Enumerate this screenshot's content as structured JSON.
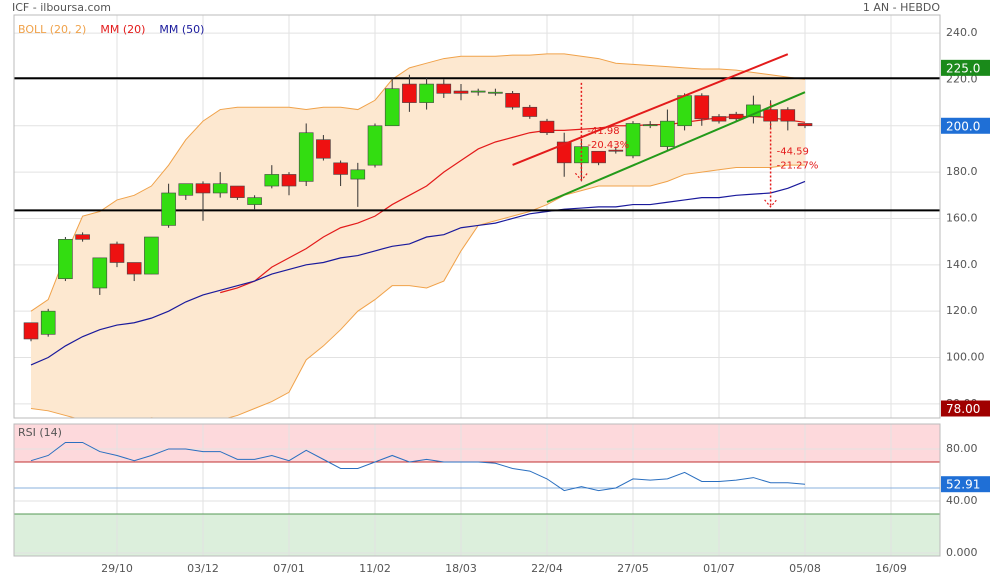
{
  "chart_data": {
    "type": "candlestick",
    "title": "ICF - ilboursa.com",
    "subtitle": "1 AN - HEBDO",
    "categories": [
      null,
      null,
      null,
      null,
      null,
      "29/10",
      null,
      null,
      null,
      null,
      "03/12",
      null,
      null,
      null,
      null,
      "07/01",
      null,
      null,
      null,
      null,
      "11/02",
      null,
      null,
      null,
      null,
      "18/03",
      null,
      null,
      null,
      null,
      "22/04",
      null,
      null,
      null,
      null,
      "27/05",
      null,
      null,
      null,
      null,
      "01/07",
      null,
      null,
      null,
      null,
      "05/08",
      null,
      null,
      null,
      null,
      "16/09"
    ],
    "candles": {
      "up_color": "#33dd11",
      "down_color": "#ee1111",
      "open": [
        115,
        110,
        134,
        153,
        130,
        149,
        141,
        136,
        157,
        170,
        175,
        171,
        174,
        166,
        174,
        179,
        176,
        194,
        184,
        177,
        183,
        200,
        218,
        210,
        218,
        215,
        214.5,
        214,
        214,
        208,
        202,
        193,
        184,
        189,
        189.5,
        187,
        200,
        191,
        200,
        213,
        204,
        205,
        204,
        207,
        207,
        201,
        null,
        null,
        null,
        null,
        null
      ],
      "high": [
        115,
        121,
        152,
        154,
        143,
        150,
        141,
        152,
        175,
        175,
        176,
        180,
        174,
        170,
        183,
        180,
        201,
        196,
        185,
        184,
        201,
        221,
        222,
        221,
        220,
        218,
        216,
        216,
        215,
        209,
        203,
        197,
        194,
        189,
        191,
        202,
        202,
        207,
        214,
        214,
        205,
        206,
        213,
        211,
        208,
        201,
        null,
        null,
        null,
        null,
        null
      ],
      "low": [
        107,
        109,
        133,
        150,
        127,
        139,
        133,
        136,
        156,
        168,
        159,
        169,
        168,
        164,
        173,
        170,
        174,
        185,
        174,
        165,
        182,
        200,
        206,
        207,
        212,
        211,
        213,
        213,
        207,
        203,
        196,
        178,
        176,
        183,
        188,
        186,
        199,
        189,
        198,
        200,
        201,
        202,
        201,
        199,
        198,
        199,
        null,
        null,
        null,
        null,
        null
      ],
      "close": [
        108,
        120,
        151,
        151,
        143,
        141,
        136,
        152,
        171,
        175,
        171,
        175,
        169,
        169,
        179,
        174,
        197,
        186,
        179,
        181,
        200,
        216,
        210,
        218,
        214,
        214,
        215,
        214.5,
        208,
        204,
        197,
        184,
        191,
        184,
        189,
        201,
        200.5,
        202,
        213,
        203,
        202,
        203,
        209,
        202,
        202,
        200,
        null,
        null,
        null,
        null,
        null
      ]
    },
    "series": [
      {
        "name": "BOLL (20, 2)",
        "color": "#f0a24a",
        "fill": "#fde8d0",
        "upper": [
          120,
          125,
          144,
          161,
          163,
          168,
          170,
          174,
          183,
          194,
          202,
          207,
          208,
          208,
          208,
          208,
          207,
          208,
          208,
          207,
          211,
          220,
          225,
          227,
          229,
          230,
          230,
          230,
          230.5,
          230.5,
          231,
          231,
          230,
          229,
          227,
          226.5,
          226,
          225.5,
          225,
          224.5,
          224.5,
          224,
          223,
          222,
          221,
          220,
          null,
          null,
          null,
          null,
          null
        ],
        "lower": [
          78,
          77,
          75,
          73,
          70,
          70,
          72,
          74,
          73,
          72,
          72,
          73,
          75,
          78,
          81,
          85,
          99,
          105,
          112,
          120,
          125,
          131,
          131,
          130,
          133,
          146,
          157,
          159,
          161,
          163,
          166,
          170,
          172,
          174,
          174,
          174,
          174,
          176,
          179,
          180,
          181,
          182,
          182,
          182,
          183,
          183,
          null,
          null,
          null,
          null,
          null
        ]
      },
      {
        "name": "MM (20)",
        "color": "#e31b1b",
        "values": [
          null,
          null,
          null,
          null,
          null,
          null,
          null,
          null,
          null,
          null,
          null,
          128,
          130,
          133,
          139,
          143,
          147,
          152,
          156,
          158,
          161,
          166,
          170,
          174,
          180,
          185,
          190,
          193,
          195,
          197,
          198,
          198,
          198.5,
          199,
          200,
          200,
          200.5,
          200.5,
          201.5,
          202.5,
          203.5,
          204,
          204,
          203.5,
          202.5,
          201.5,
          null,
          null,
          null,
          null,
          null
        ]
      },
      {
        "name": "MM (50)",
        "color": "#1a1a9c",
        "values": [
          96.8,
          100,
          105,
          109,
          112,
          114,
          115,
          117,
          120,
          124,
          127,
          129,
          131,
          133,
          136,
          138,
          140,
          141,
          143,
          144,
          146,
          148,
          149,
          152,
          153,
          156,
          157,
          158,
          160,
          162,
          163,
          164,
          164.5,
          165,
          165,
          166,
          166,
          167,
          168,
          169,
          169,
          170,
          170.5,
          171,
          173,
          176,
          null,
          null,
          null,
          null,
          null
        ]
      }
    ],
    "ylim": [
      73.9,
      247.8
    ],
    "yticks": [
      {
        "value": 240,
        "label": "240.0"
      },
      {
        "value": 220,
        "label": "220.0"
      },
      {
        "value": 200,
        "label": "200.0"
      },
      {
        "value": 180,
        "label": "180.0"
      },
      {
        "value": 160,
        "label": "160.0"
      },
      {
        "value": 140,
        "label": "140.0"
      },
      {
        "value": 120,
        "label": "120.0"
      },
      {
        "value": 100,
        "label": "100.00"
      },
      {
        "value": 80,
        "label": "80.00"
      }
    ],
    "grid": true,
    "hlines": [
      220.5,
      163.5
    ],
    "price_tags": [
      {
        "value": 225,
        "label": "225.0",
        "color": "#1a8a1a"
      },
      {
        "value": 200,
        "label": "200.0",
        "color": "#1f6fd6"
      },
      {
        "value": 78,
        "label": "78.00",
        "color": "#a00000"
      }
    ],
    "trendlines": [
      {
        "color": "#e31b1b",
        "x": [
          28,
          44
        ],
        "y": [
          183.1,
          230.9
        ]
      },
      {
        "color": "#239a1a",
        "x": [
          30,
          45
        ],
        "y": [
          167.1,
          214.5
        ]
      }
    ],
    "measures": [
      {
        "x": 32,
        "from": 218.5,
        "to": 176.5,
        "labels": [
          "-41.98",
          "-20.43%"
        ]
      },
      {
        "x": 43,
        "from": 209.6,
        "to": 165.0,
        "labels": [
          "-44.59",
          "-21.27%"
        ]
      }
    ],
    "rsi": {
      "title": "RSI (14)",
      "color": "#2a6fc0",
      "values": [
        71,
        75,
        85,
        85,
        78,
        75,
        71,
        75,
        80,
        80,
        78,
        78,
        72,
        72,
        75,
        71,
        79,
        72,
        65,
        65,
        70,
        75,
        70,
        72,
        70,
        70,
        70,
        69,
        65,
        63,
        57,
        48,
        51,
        48,
        50,
        57,
        56,
        57,
        62,
        55,
        55,
        56,
        58,
        54,
        54,
        52.91,
        null,
        null,
        null,
        null,
        null
      ],
      "ylim": [
        -2.3,
        99.2
      ],
      "yticks": [
        {
          "value": 80,
          "label": "80.00"
        },
        {
          "value": 40,
          "label": "40.00"
        },
        {
          "value": 0,
          "label": "0.000"
        }
      ],
      "overbought": 70,
      "oversold": 30,
      "midline": 50,
      "tag_color": "#1f6fd6"
    }
  }
}
